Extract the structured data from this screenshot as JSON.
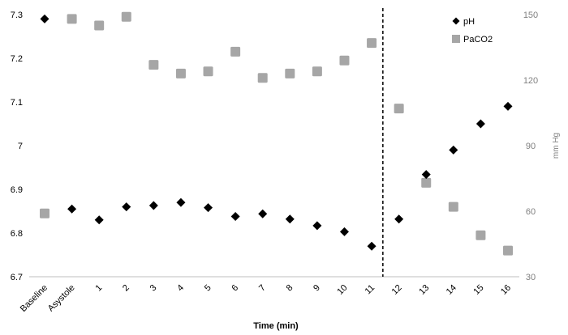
{
  "chart_data": {
    "type": "scatter",
    "title": "",
    "xlabel": "Time (min)",
    "ylabel": "",
    "y2label": "mm Hg",
    "categories": [
      "Baseline",
      "Asystole",
      "1",
      "2",
      "3",
      "4",
      "5",
      "6",
      "7",
      "8",
      "9",
      "10",
      "11",
      "12",
      "13",
      "14",
      "15",
      "16"
    ],
    "ylim": [
      6.7,
      7.3
    ],
    "yticks": [
      "6.7",
      "6.8",
      "6.9",
      "7",
      "7.1",
      "7.2",
      "7.3"
    ],
    "y2lim": [
      30,
      150
    ],
    "y2ticks": [
      "30",
      "60",
      "90",
      "120",
      "150"
    ],
    "divider_after_category": "11",
    "legend_position": "top-right",
    "series": [
      {
        "name": "pH",
        "axis": "left",
        "marker": "diamond",
        "color": "#000000",
        "values": [
          7.29,
          6.855,
          6.83,
          6.86,
          6.863,
          6.87,
          6.858,
          6.838,
          6.844,
          6.832,
          6.817,
          6.803,
          6.77,
          6.832,
          6.934,
          6.99,
          7.05,
          7.09
        ]
      },
      {
        "name": "PaCO2",
        "axis": "right",
        "marker": "square",
        "color": "#a6a6a6",
        "values": [
          59,
          148,
          145,
          149,
          127,
          123,
          124,
          133,
          121,
          123,
          124,
          129,
          137,
          107,
          73,
          62,
          49,
          42
        ]
      }
    ]
  }
}
